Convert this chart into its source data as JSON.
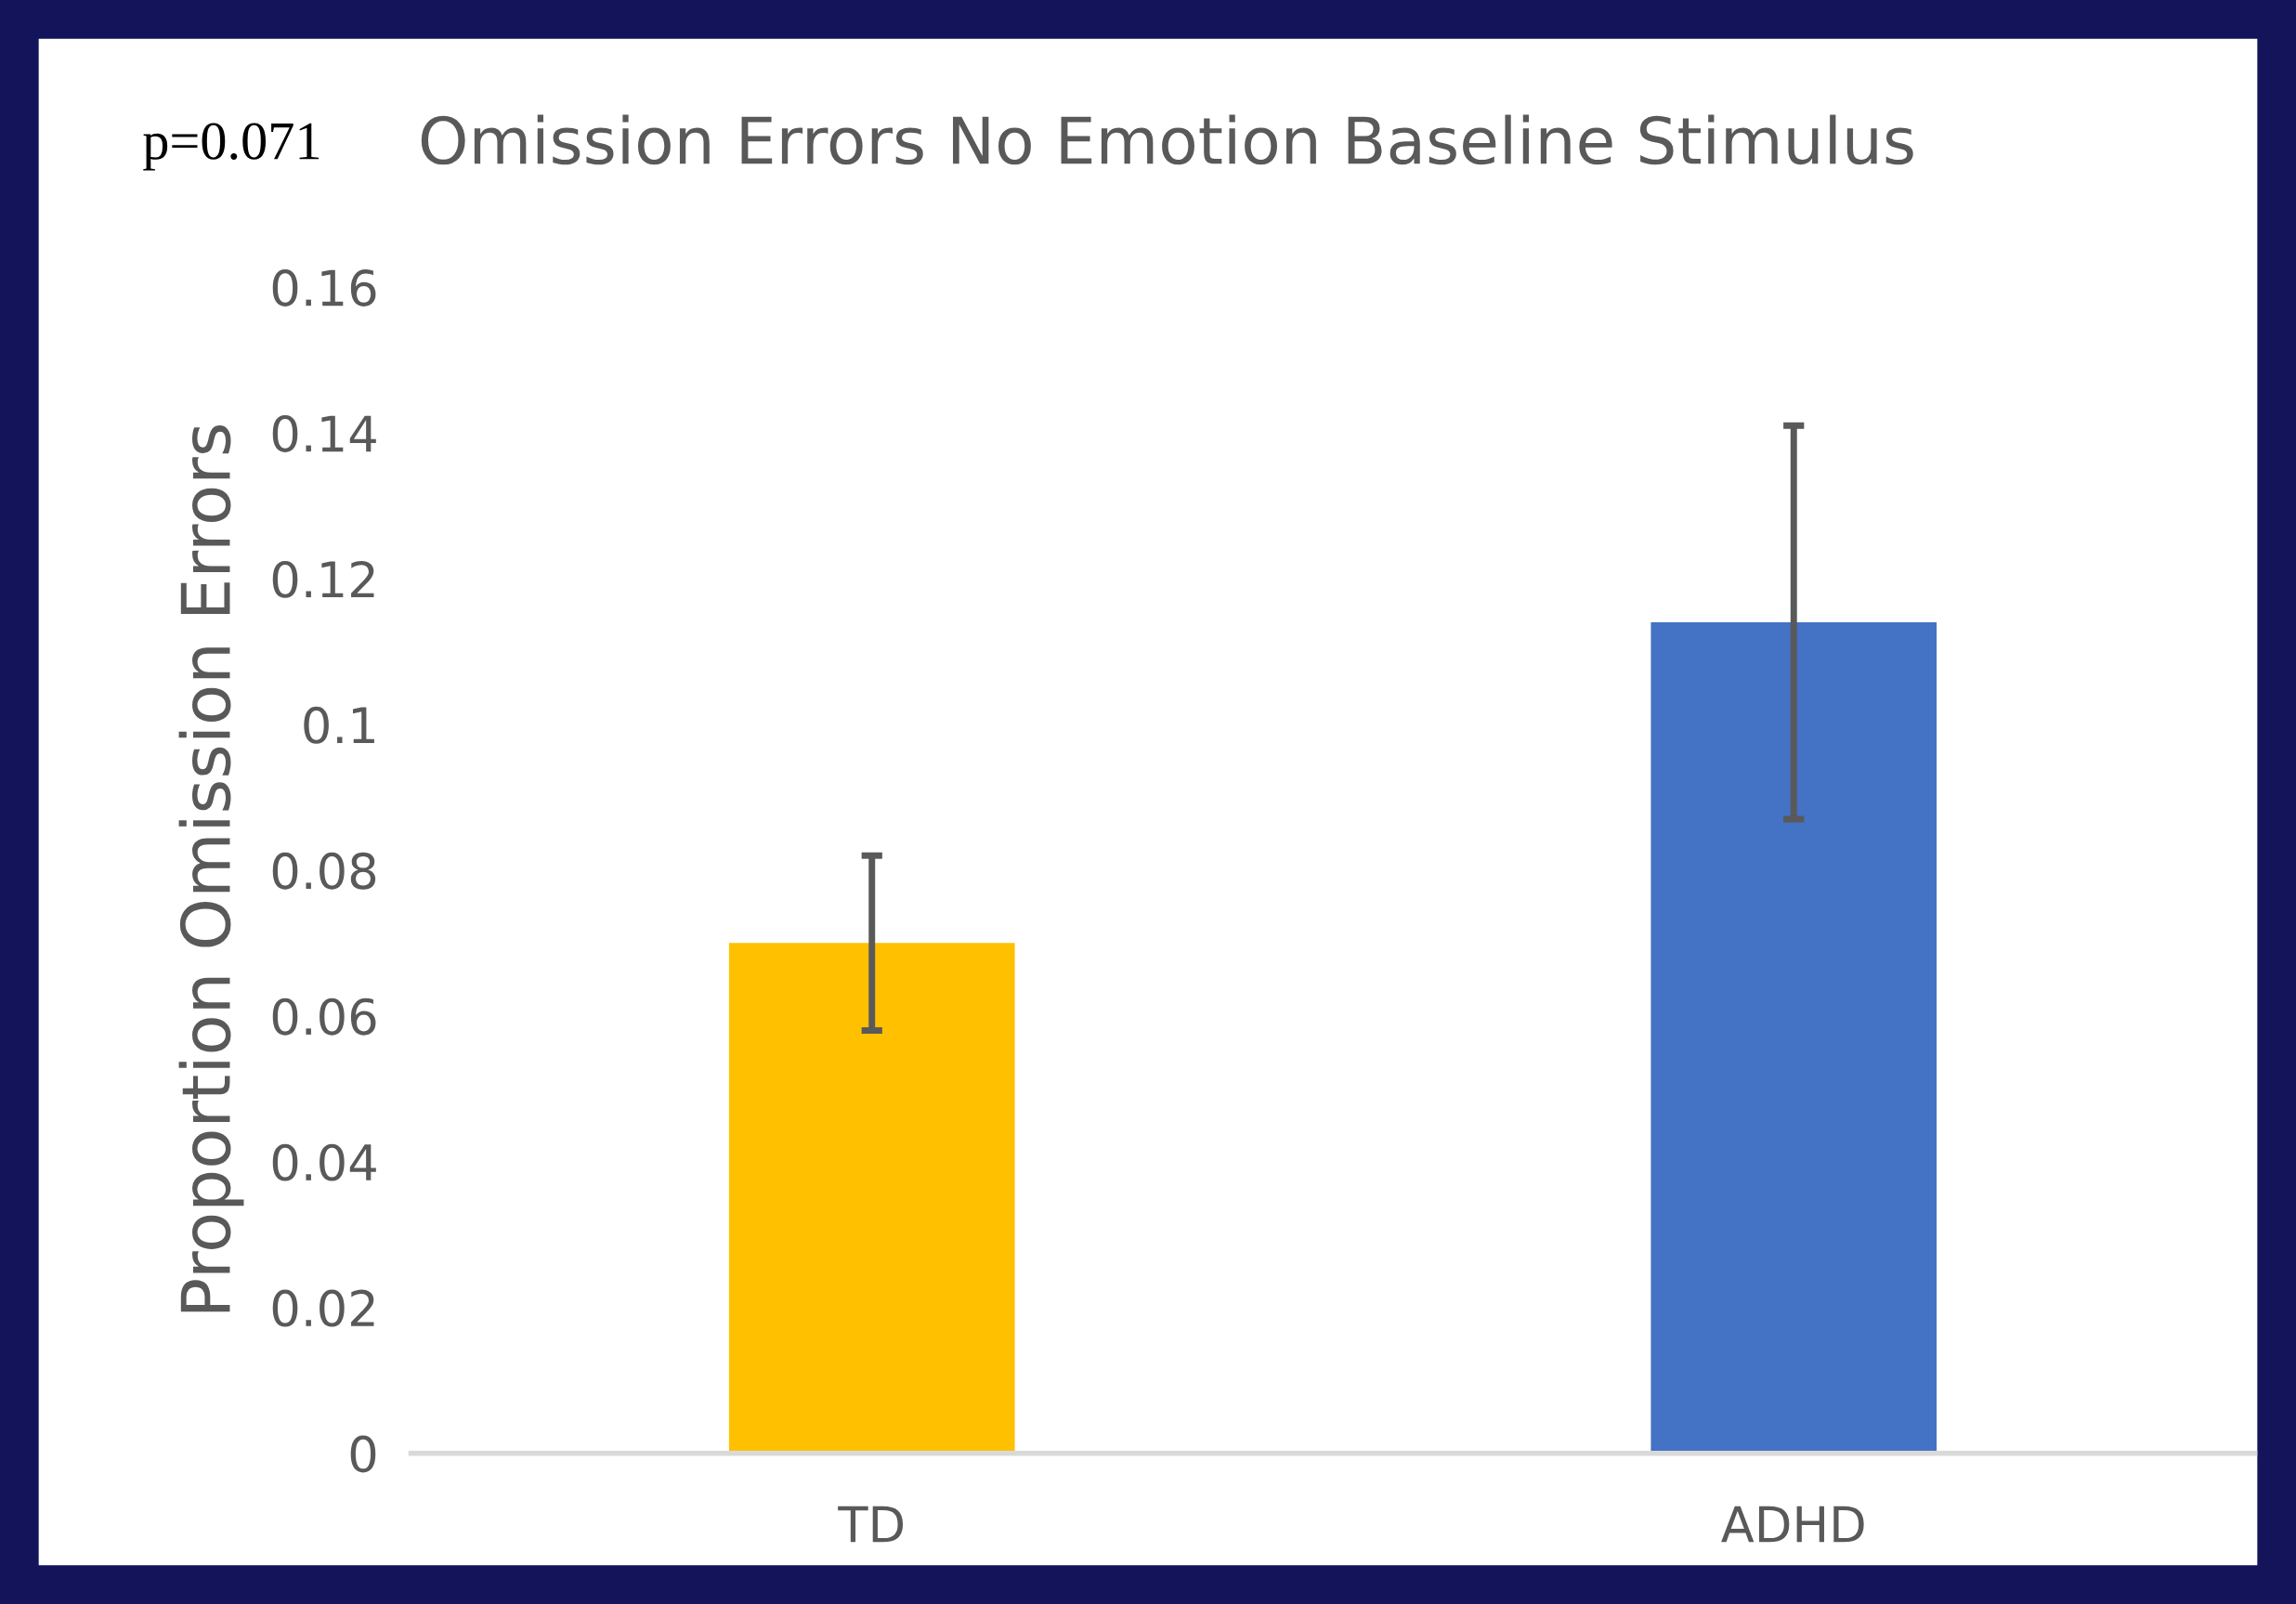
{
  "chart_data": {
    "type": "bar",
    "title": "Omission Errors No Emotion Baseline Stimulus",
    "ylabel": "Proportion Omission Errors",
    "annotations": [
      "p=0.071"
    ],
    "categories": [
      "TD",
      "ADHD"
    ],
    "values": [
      0.07,
      0.114
    ],
    "colors": [
      "#ffc000",
      "#4472c4"
    ],
    "errors": [
      0.012,
      0.027
    ],
    "ylim": [
      0,
      0.16
    ],
    "yticks": [
      0,
      0.02,
      0.04,
      0.06,
      0.08,
      0.1,
      0.12,
      0.14,
      0.16
    ],
    "grid": false
  }
}
